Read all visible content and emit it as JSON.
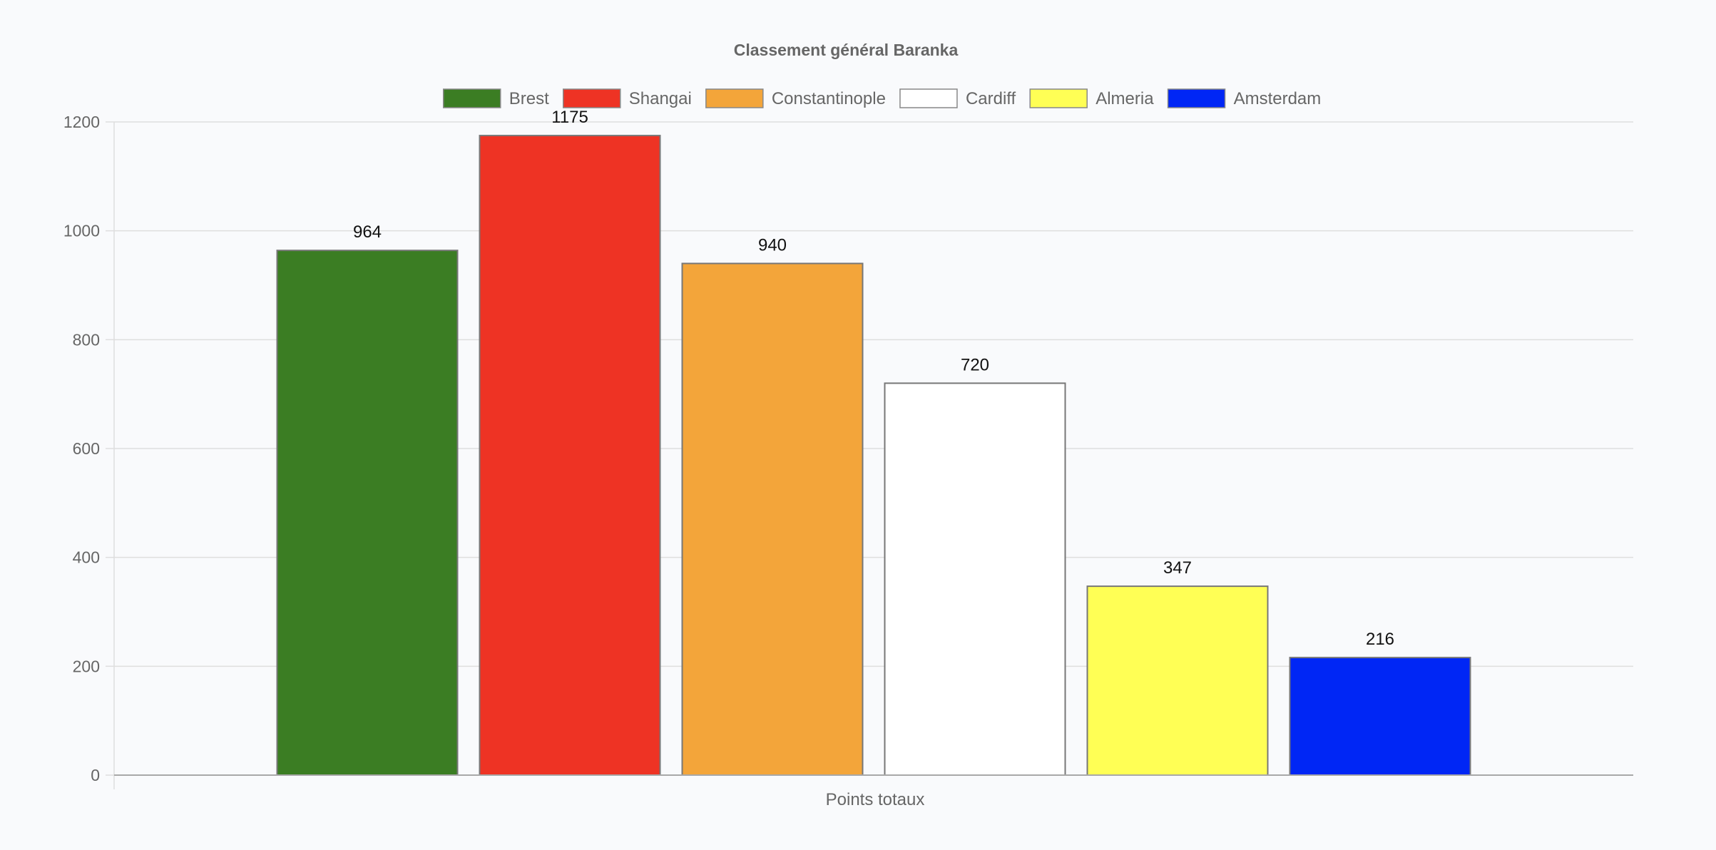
{
  "chart_data": {
    "type": "bar",
    "title": "Classement général Baranka",
    "categories": [
      "Points totaux"
    ],
    "series": [
      {
        "name": "Brest",
        "values": [
          964
        ],
        "color": "#3b7d23"
      },
      {
        "name": "Shangai",
        "values": [
          1175
        ],
        "color": "#ee3324"
      },
      {
        "name": "Constantinople",
        "values": [
          940
        ],
        "color": "#f3a53a"
      },
      {
        "name": "Cardiff",
        "values": [
          720
        ],
        "color": "#ffffff"
      },
      {
        "name": "Almeria",
        "values": [
          347
        ],
        "color": "#ffff55"
      },
      {
        "name": "Amsterdam",
        "values": [
          216
        ],
        "color": "#0026f5"
      }
    ],
    "yticks": [
      "0",
      "200",
      "400",
      "600",
      "800",
      "1000",
      "1200"
    ],
    "ylim": [
      0,
      1200
    ],
    "legend": "top",
    "grid": true,
    "data_labels": true
  }
}
